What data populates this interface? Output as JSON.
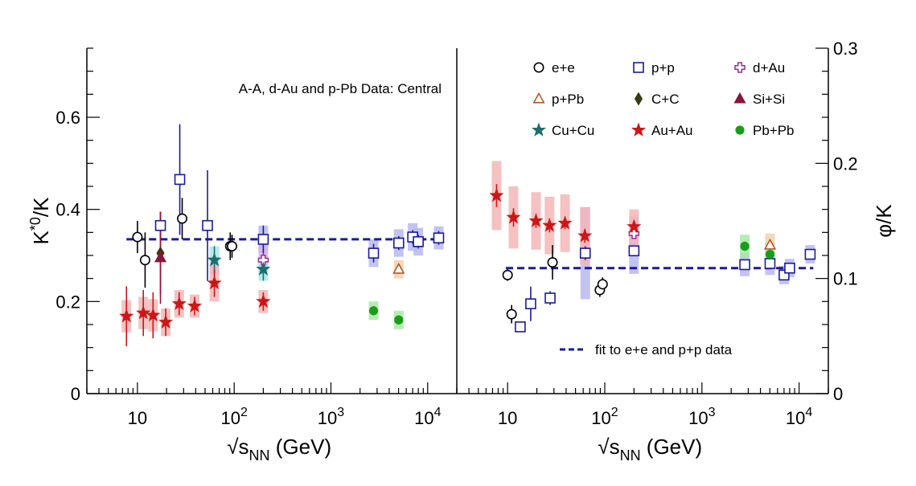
{
  "chart_data": [
    {
      "type": "scatter",
      "panel": "left",
      "x_scale": "log",
      "xlim": [
        3,
        20000
      ],
      "ylim": [
        0,
        0.75
      ],
      "xlabel": "√s_NN (GeV)",
      "ylabel": "K*0/K",
      "y_ticks": [
        "0",
        "0.2",
        "0.4",
        "0.6"
      ],
      "x_ticks": [
        "10",
        "10^2",
        "10^3",
        "10^4"
      ],
      "annotation": "A-A, d-Au and p-Pb Data: Central",
      "fit": {
        "value": 0.335,
        "x_from": 7.7,
        "x_to": 13000,
        "style": "dashed",
        "color": "#1a1a9c"
      },
      "series": [
        {
          "name": "e+e",
          "marker": "circle-open",
          "color": "#000000",
          "points": [
            {
              "x": 10,
              "y": 0.34,
              "err": 0.035
            },
            {
              "x": 12,
              "y": 0.29,
              "err": 0.06
            },
            {
              "x": 29,
              "y": 0.38,
              "err": 0.045
            },
            {
              "x": 91,
              "y": 0.32,
              "err": 0.03
            },
            {
              "x": 95,
              "y": 0.32,
              "err": 0.025
            }
          ]
        },
        {
          "name": "p+p",
          "marker": "square-open",
          "color": "#1a1a9c",
          "points": [
            {
              "x": 17.3,
              "y": 0.365,
              "err": 0.03
            },
            {
              "x": 27.4,
              "y": 0.465,
              "err": 0.12
            },
            {
              "x": 53,
              "y": 0.365,
              "err": 0.12
            },
            {
              "x": 200,
              "y": 0.335,
              "err": 0.03,
              "sys": 0.03
            },
            {
              "x": 2760,
              "y": 0.305,
              "err": 0.02,
              "sys": 0.03
            },
            {
              "x": 5020,
              "y": 0.327,
              "err": 0.015,
              "sys": 0.03
            },
            {
              "x": 7000,
              "y": 0.34,
              "err": 0.015,
              "sys": 0.03
            },
            {
              "x": 8000,
              "y": 0.33,
              "err": 0.015,
              "sys": 0.03
            },
            {
              "x": 13000,
              "y": 0.338,
              "err": 0.015,
              "sys": 0.025
            }
          ]
        },
        {
          "name": "d+Au",
          "marker": "cross-open",
          "color": "#9c2a9c",
          "points": [
            {
              "x": 200,
              "y": 0.29,
              "err": 0.015,
              "sys": 0.03
            }
          ]
        },
        {
          "name": "p+Pb",
          "marker": "triangle-open",
          "color": "#b4501e",
          "points": [
            {
              "x": 5020,
              "y": 0.27,
              "err": 0.01,
              "sys": 0.02
            }
          ]
        },
        {
          "name": "C+C",
          "marker": "diamond",
          "color": "#3a3a12",
          "points": [
            {
              "x": 17.3,
              "y": 0.305,
              "err": 0.09
            }
          ]
        },
        {
          "name": "Si+Si",
          "marker": "triangle",
          "color": "#8c143c",
          "points": [
            {
              "x": 17.3,
              "y": 0.295,
              "err": 0.1
            }
          ]
        },
        {
          "name": "Cu+Cu",
          "marker": "star",
          "color": "#1e6e6e",
          "points": [
            {
              "x": 62.4,
              "y": 0.29,
              "err": 0.03,
              "sys": 0.03
            },
            {
              "x": 200,
              "y": 0.27,
              "err": 0.025,
              "sys": 0.025
            }
          ]
        },
        {
          "name": "Au+Au",
          "marker": "star",
          "color": "#cc1616",
          "points": [
            {
              "x": 7.7,
              "y": 0.168,
              "err": 0.065,
              "sys": 0.035
            },
            {
              "x": 11.5,
              "y": 0.175,
              "err": 0.05,
              "sys": 0.035
            },
            {
              "x": 14.5,
              "y": 0.17,
              "err": 0.05,
              "sys": 0.035
            },
            {
              "x": 19.6,
              "y": 0.155,
              "err": 0.03,
              "sys": 0.03
            },
            {
              "x": 27,
              "y": 0.195,
              "err": 0.025,
              "sys": 0.03
            },
            {
              "x": 39,
              "y": 0.19,
              "err": 0.02,
              "sys": 0.025
            },
            {
              "x": 62.4,
              "y": 0.24,
              "err": 0.03,
              "sys": 0.04
            },
            {
              "x": 200,
              "y": 0.2,
              "err": 0.02,
              "sys": 0.025
            }
          ]
        },
        {
          "name": "Pb+Pb",
          "marker": "circle",
          "color": "#1a9c1a",
          "points": [
            {
              "x": 2760,
              "y": 0.18,
              "err": 0.01,
              "sys": 0.02
            },
            {
              "x": 5020,
              "y": 0.16,
              "err": 0.01,
              "sys": 0.02
            }
          ]
        }
      ]
    },
    {
      "type": "scatter",
      "panel": "right",
      "x_scale": "log",
      "xlim": [
        3,
        20000
      ],
      "ylim": [
        0,
        0.3
      ],
      "xlabel": "√s_NN (GeV)",
      "ylabel": "φ/K",
      "y_ticks": [
        "0",
        "0.1",
        "0.2",
        "0.3"
      ],
      "x_ticks": [
        "10",
        "10^2",
        "10^3",
        "10^4"
      ],
      "fit": {
        "value": 0.109,
        "x_from": 9.6,
        "x_to": 14000,
        "style": "dashed",
        "color": "#1a1a9c"
      },
      "series": [
        {
          "name": "e+e",
          "marker": "circle-open",
          "color": "#000000",
          "points": [
            {
              "x": 10,
              "y": 0.103,
              "err": 0.005
            },
            {
              "x": 11,
              "y": 0.069,
              "err": 0.008
            },
            {
              "x": 29,
              "y": 0.114,
              "err": 0.015
            },
            {
              "x": 89,
              "y": 0.09,
              "err": 0.006
            },
            {
              "x": 95,
              "y": 0.095,
              "err": 0.006
            }
          ]
        },
        {
          "name": "p+p",
          "marker": "square-open",
          "color": "#1a1a9c",
          "points": [
            {
              "x": 13.5,
              "y": 0.058,
              "err": 0.004
            },
            {
              "x": 17.3,
              "y": 0.078,
              "err": 0.015
            },
            {
              "x": 27.4,
              "y": 0.083,
              "err": 0.006
            },
            {
              "x": 63,
              "y": 0.122,
              "err": 0.006,
              "sys": 0.04
            },
            {
              "x": 200,
              "y": 0.124,
              "err": 0.004,
              "sys": 0.02
            },
            {
              "x": 2760,
              "y": 0.112,
              "err": 0.004,
              "sys": 0.01
            },
            {
              "x": 5020,
              "y": 0.113,
              "err": 0.004,
              "sys": 0.01
            },
            {
              "x": 7000,
              "y": 0.103,
              "err": 0.004,
              "sys": 0.008
            },
            {
              "x": 8000,
              "y": 0.109,
              "err": 0.004,
              "sys": 0.008
            },
            {
              "x": 13000,
              "y": 0.121,
              "err": 0.004,
              "sys": 0.008
            }
          ]
        },
        {
          "name": "d+Au",
          "marker": "cross-open",
          "color": "#9c2a9c",
          "points": [
            {
              "x": 200,
              "y": 0.139,
              "err": 0.004,
              "sys": 0.015
            }
          ]
        },
        {
          "name": "p+Pb",
          "marker": "triangle-open",
          "color": "#b4501e",
          "points": [
            {
              "x": 5020,
              "y": 0.129,
              "err": 0.004,
              "sys": 0.01
            }
          ]
        },
        {
          "name": "Au+Au",
          "marker": "star",
          "color": "#cc1616",
          "points": [
            {
              "x": 7.7,
              "y": 0.172,
              "err": 0.01,
              "sys": 0.03
            },
            {
              "x": 11.5,
              "y": 0.153,
              "err": 0.008,
              "sys": 0.027
            },
            {
              "x": 19.6,
              "y": 0.15,
              "err": 0.006,
              "sys": 0.025
            },
            {
              "x": 27,
              "y": 0.146,
              "err": 0.006,
              "sys": 0.025
            },
            {
              "x": 39,
              "y": 0.148,
              "err": 0.005,
              "sys": 0.025
            },
            {
              "x": 62.4,
              "y": 0.137,
              "err": 0.006,
              "sys": 0.025
            },
            {
              "x": 200,
              "y": 0.145,
              "err": 0.004,
              "sys": 0.015
            }
          ]
        },
        {
          "name": "Pb+Pb",
          "marker": "circle",
          "color": "#1a9c1a",
          "points": [
            {
              "x": 2760,
              "y": 0.128,
              "err": 0.004,
              "sys": 0.01
            },
            {
              "x": 5020,
              "y": 0.121,
              "err": 0.004,
              "sys": 0.01
            }
          ]
        }
      ]
    }
  ],
  "legend": {
    "location": "upper-right",
    "items": [
      {
        "label": "e+e",
        "marker": "circle-open",
        "color": "#000000"
      },
      {
        "label": "p+p",
        "marker": "square-open",
        "color": "#1a1a9c"
      },
      {
        "label": "d+Au",
        "marker": "cross-open",
        "color": "#9c2a9c"
      },
      {
        "label": "p+Pb",
        "marker": "triangle-open",
        "color": "#b4501e"
      },
      {
        "label": "C+C",
        "marker": "diamond",
        "color": "#3a3a12"
      },
      {
        "label": "Si+Si",
        "marker": "triangle",
        "color": "#8c143c"
      },
      {
        "label": "Cu+Cu",
        "marker": "star",
        "color": "#1e6e6e"
      },
      {
        "label": "Au+Au",
        "marker": "star",
        "color": "#cc1616"
      },
      {
        "label": "Pb+Pb",
        "marker": "circle",
        "color": "#1a9c1a"
      }
    ],
    "fit_label": "fit to e+e and p+p data"
  },
  "colors": {
    "fit_line": "#1a1a9c",
    "sys_blue": "#b8b8f0",
    "sys_red": "#f4b6b6",
    "sys_green": "#a8e8a8",
    "sys_teal": "#a8e8e8",
    "sys_purple": "#d8b4e8",
    "sys_orange": "#f4d0b0"
  }
}
